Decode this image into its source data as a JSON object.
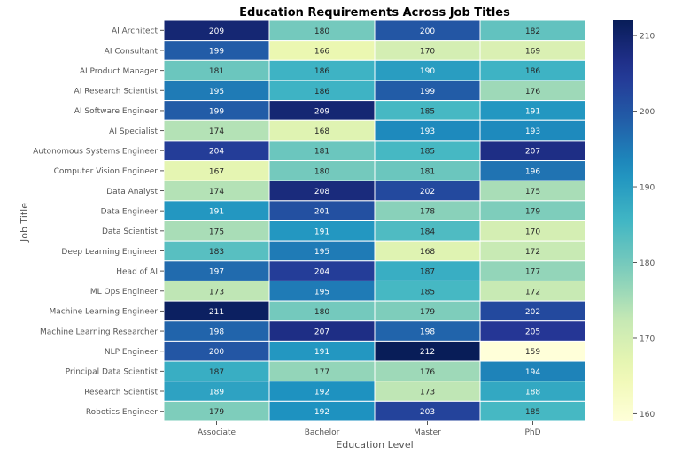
{
  "chart_data": {
    "type": "heatmap",
    "title": "Education Requirements Across Job Titles",
    "xlabel": "Education Level",
    "ylabel": "Job Title",
    "x_categories": [
      "Associate",
      "Bachelor",
      "Master",
      "PhD"
    ],
    "y_categories": [
      "AI Architect",
      "AI Consultant",
      "AI Product Manager",
      "AI Research Scientist",
      "AI Software Engineer",
      "AI Specialist",
      "Autonomous Systems Engineer",
      "Computer Vision Engineer",
      "Data Analyst",
      "Data Engineer",
      "Data Scientist",
      "Deep Learning Engineer",
      "Head of AI",
      "ML Ops Engineer",
      "Machine Learning Engineer",
      "Machine Learning Researcher",
      "NLP Engineer",
      "Principal Data Scientist",
      "Research Scientist",
      "Robotics Engineer"
    ],
    "values": [
      [
        209,
        180,
        200,
        182
      ],
      [
        199,
        166,
        170,
        169
      ],
      [
        181,
        186,
        190,
        186
      ],
      [
        195,
        186,
        199,
        176
      ],
      [
        199,
        209,
        185,
        191
      ],
      [
        174,
        168,
        193,
        193
      ],
      [
        204,
        181,
        185,
        207
      ],
      [
        167,
        180,
        181,
        196
      ],
      [
        174,
        208,
        202,
        175
      ],
      [
        191,
        201,
        178,
        179
      ],
      [
        175,
        191,
        184,
        170
      ],
      [
        183,
        195,
        168,
        172
      ],
      [
        197,
        204,
        187,
        177
      ],
      [
        173,
        195,
        185,
        172
      ],
      [
        211,
        180,
        179,
        202
      ],
      [
        198,
        207,
        198,
        205
      ],
      [
        200,
        191,
        212,
        159
      ],
      [
        187,
        177,
        176,
        194
      ],
      [
        189,
        192,
        173,
        188
      ],
      [
        179,
        192,
        203,
        185
      ]
    ],
    "colormap": "YlGnBu",
    "color_range": [
      159,
      212
    ],
    "colorbar_ticks": [
      160,
      170,
      180,
      190,
      200,
      210
    ],
    "annotations": true
  }
}
